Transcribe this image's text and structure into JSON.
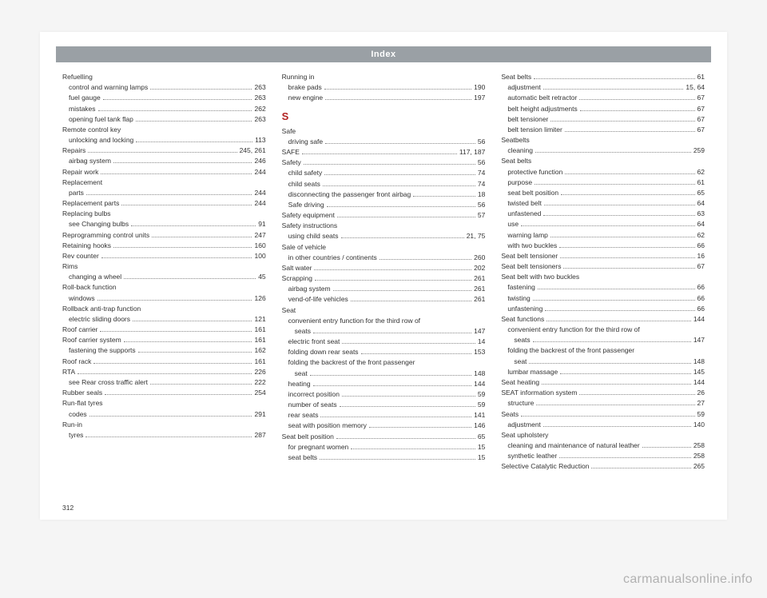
{
  "header": "Index",
  "pageNumber": "312",
  "watermark": "carmanualsonline.info",
  "sectionLetter": "S",
  "col1": [
    {
      "type": "head",
      "text": "Refuelling"
    },
    {
      "type": "sub",
      "text": "control and warning lamps",
      "page": "263"
    },
    {
      "type": "sub",
      "text": "fuel gauge",
      "page": "263"
    },
    {
      "type": "sub",
      "text": "mistakes",
      "page": "262"
    },
    {
      "type": "sub",
      "text": "opening fuel tank flap",
      "page": "263"
    },
    {
      "type": "head",
      "text": "Remote control key"
    },
    {
      "type": "sub",
      "text": "unlocking and locking",
      "page": "113"
    },
    {
      "type": "row",
      "text": "Repairs",
      "page": "245, 261"
    },
    {
      "type": "sub",
      "text": "airbag system",
      "page": "246"
    },
    {
      "type": "row",
      "text": "Repair work",
      "page": "244"
    },
    {
      "type": "head",
      "text": "Replacement"
    },
    {
      "type": "sub",
      "text": "parts",
      "page": "244"
    },
    {
      "type": "row",
      "text": "Replacement parts",
      "page": "244"
    },
    {
      "type": "head",
      "text": "Replacing bulbs"
    },
    {
      "type": "sub",
      "text": "see Changing bulbs",
      "page": "91"
    },
    {
      "type": "row",
      "text": "Reprogramming control units",
      "page": "247"
    },
    {
      "type": "row",
      "text": "Retaining hooks",
      "page": "160"
    },
    {
      "type": "row",
      "text": "Rev counter",
      "page": "100"
    },
    {
      "type": "head",
      "text": "Rims"
    },
    {
      "type": "sub",
      "text": "changing a wheel",
      "page": "45"
    },
    {
      "type": "head",
      "text": "Roll-back function"
    },
    {
      "type": "sub",
      "text": "windows",
      "page": "126"
    },
    {
      "type": "head",
      "text": "Rollback anti-trap function"
    },
    {
      "type": "sub",
      "text": "electric sliding doors",
      "page": "121"
    },
    {
      "type": "row",
      "text": "Roof carrier",
      "page": "161"
    },
    {
      "type": "row",
      "text": "Roof carrier system",
      "page": "161"
    },
    {
      "type": "sub",
      "text": "fastening the supports",
      "page": "162"
    },
    {
      "type": "row",
      "text": "Roof rack",
      "page": "161"
    },
    {
      "type": "row",
      "text": "RTA",
      "page": "226"
    },
    {
      "type": "sub",
      "text": "see Rear cross traffic alert",
      "page": "222"
    },
    {
      "type": "row",
      "text": "Rubber seals",
      "page": "254"
    },
    {
      "type": "head",
      "text": "Run-flat tyres"
    },
    {
      "type": "sub",
      "text": "codes",
      "page": "291"
    },
    {
      "type": "head",
      "text": "Run-in"
    },
    {
      "type": "sub",
      "text": "tyres",
      "page": "287"
    }
  ],
  "col2": [
    {
      "type": "head",
      "text": "Running in"
    },
    {
      "type": "sub",
      "text": "brake pads",
      "page": "190"
    },
    {
      "type": "sub",
      "text": "new engine",
      "page": "197"
    },
    {
      "type": "letter"
    },
    {
      "type": "head",
      "text": "Safe"
    },
    {
      "type": "sub",
      "text": "driving safe",
      "page": "56"
    },
    {
      "type": "row",
      "text": "SAFE",
      "page": "117, 187"
    },
    {
      "type": "row",
      "text": "Safety",
      "page": "56"
    },
    {
      "type": "sub",
      "text": "child safety",
      "page": "74"
    },
    {
      "type": "sub",
      "text": "child seats",
      "page": "74"
    },
    {
      "type": "sub",
      "text": "disconnecting the passenger front airbag",
      "page": "18"
    },
    {
      "type": "sub",
      "text": "Safe driving",
      "page": "56"
    },
    {
      "type": "row",
      "text": "Safety equipment",
      "page": "57"
    },
    {
      "type": "head",
      "text": "Safety instructions"
    },
    {
      "type": "sub",
      "text": "using child seats",
      "page": "21, 75"
    },
    {
      "type": "head",
      "text": "Sale of vehicle"
    },
    {
      "type": "sub",
      "text": "in other countries / continents",
      "page": "260"
    },
    {
      "type": "row",
      "text": "Salt water",
      "page": "202"
    },
    {
      "type": "row",
      "text": "Scrapping",
      "page": "261"
    },
    {
      "type": "sub",
      "text": "airbag system",
      "page": "261"
    },
    {
      "type": "sub",
      "text": "vend-of-life vehicles",
      "page": "261"
    },
    {
      "type": "head",
      "text": "Seat"
    },
    {
      "type": "subhead",
      "text": "convenient entry function for the third row of"
    },
    {
      "type": "sub2",
      "text": "seats",
      "page": "147"
    },
    {
      "type": "sub",
      "text": "electric front seat",
      "page": "14"
    },
    {
      "type": "sub",
      "text": "folding down rear seats",
      "page": "153"
    },
    {
      "type": "subhead",
      "text": "folding the backrest of the front passenger"
    },
    {
      "type": "sub2",
      "text": "seat",
      "page": "148"
    },
    {
      "type": "sub",
      "text": "heating",
      "page": "144"
    },
    {
      "type": "sub",
      "text": "incorrect position",
      "page": "59"
    },
    {
      "type": "sub",
      "text": "number of seats",
      "page": "59"
    },
    {
      "type": "sub",
      "text": "rear seats",
      "page": "141"
    },
    {
      "type": "sub",
      "text": "seat with position memory",
      "page": "146"
    },
    {
      "type": "row",
      "text": "Seat belt position",
      "page": "65"
    },
    {
      "type": "sub",
      "text": "for pregnant women",
      "page": "15"
    },
    {
      "type": "sub",
      "text": "seat belts",
      "page": "15"
    }
  ],
  "col3": [
    {
      "type": "row",
      "text": "Seat belts",
      "page": "61"
    },
    {
      "type": "sub",
      "text": "adjustment",
      "page": "15, 64"
    },
    {
      "type": "sub",
      "text": "automatic belt retractor",
      "page": "67"
    },
    {
      "type": "sub",
      "text": "belt height adjustments",
      "page": "67"
    },
    {
      "type": "sub",
      "text": "belt tensioner",
      "page": "67"
    },
    {
      "type": "sub",
      "text": "belt tension limiter",
      "page": "67"
    },
    {
      "type": "head",
      "text": "Seatbelts"
    },
    {
      "type": "sub",
      "text": "cleaning",
      "page": "259"
    },
    {
      "type": "head",
      "text": "Seat belts"
    },
    {
      "type": "sub",
      "text": "protective function",
      "page": "62"
    },
    {
      "type": "sub",
      "text": "purpose",
      "page": "61"
    },
    {
      "type": "sub",
      "text": "seat belt position",
      "page": "65"
    },
    {
      "type": "sub",
      "text": "twisted belt",
      "page": "64"
    },
    {
      "type": "sub",
      "text": "unfastened",
      "page": "63"
    },
    {
      "type": "sub",
      "text": "use",
      "page": "64"
    },
    {
      "type": "sub",
      "text": "warning lamp",
      "page": "62"
    },
    {
      "type": "sub",
      "text": "with two buckles",
      "page": "66"
    },
    {
      "type": "row",
      "text": "Seat belt tensioner",
      "page": "16"
    },
    {
      "type": "row",
      "text": "Seat belt tensioners",
      "page": "67"
    },
    {
      "type": "head",
      "text": "Seat belt with two buckles"
    },
    {
      "type": "sub",
      "text": "fastening",
      "page": "66"
    },
    {
      "type": "sub",
      "text": "twisting",
      "page": "66"
    },
    {
      "type": "sub",
      "text": "unfastening",
      "page": "66"
    },
    {
      "type": "row",
      "text": "Seat functions",
      "page": "144"
    },
    {
      "type": "subhead",
      "text": "convenient entry function for the third row of"
    },
    {
      "type": "sub2",
      "text": "seats",
      "page": "147"
    },
    {
      "type": "subhead",
      "text": "folding the backrest of the front passenger"
    },
    {
      "type": "sub2",
      "text": "seat",
      "page": "148"
    },
    {
      "type": "sub",
      "text": "lumbar massage",
      "page": "145"
    },
    {
      "type": "row",
      "text": "Seat heating",
      "page": "144"
    },
    {
      "type": "row",
      "text": "SEAT information system",
      "page": "26"
    },
    {
      "type": "sub",
      "text": "structure",
      "page": "27"
    },
    {
      "type": "row",
      "text": "Seats",
      "page": "59"
    },
    {
      "type": "sub",
      "text": "adjustment",
      "page": "140"
    },
    {
      "type": "head",
      "text": "Seat upholstery"
    },
    {
      "type": "sub",
      "text": "cleaning and maintenance of natural leather",
      "page": "258"
    },
    {
      "type": "sub",
      "text": "synthetic leather",
      "page": "258"
    },
    {
      "type": "row",
      "text": "Selective Catalytic Reduction",
      "page": "265"
    }
  ]
}
